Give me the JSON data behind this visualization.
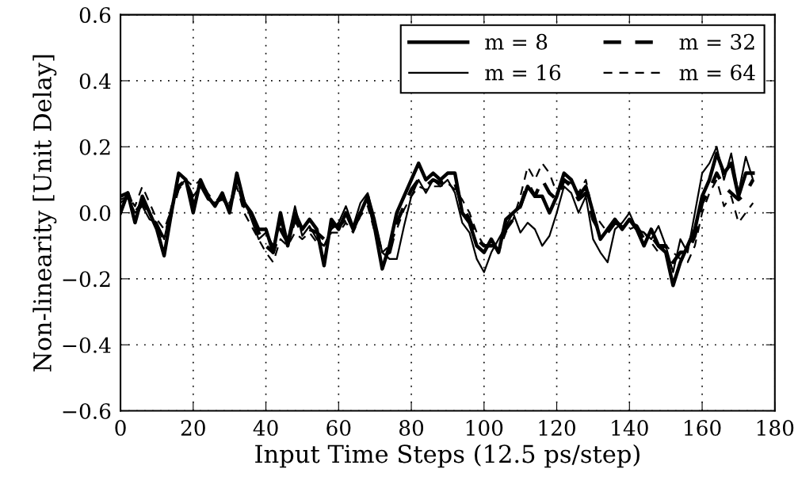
{
  "chart_data": {
    "type": "line",
    "xlabel": "Input Time Steps (12.5 ps/step)",
    "ylabel": "Non-linearity [Unit Delay]",
    "x": [
      0,
      2,
      4,
      6,
      8,
      10,
      12,
      14,
      16,
      18,
      20,
      22,
      24,
      26,
      28,
      30,
      32,
      34,
      36,
      38,
      40,
      42,
      44,
      46,
      48,
      50,
      52,
      54,
      56,
      58,
      60,
      62,
      64,
      66,
      68,
      70,
      72,
      74,
      76,
      78,
      80,
      82,
      84,
      86,
      88,
      90,
      92,
      94,
      96,
      98,
      100,
      102,
      104,
      106,
      108,
      110,
      112,
      114,
      116,
      118,
      120,
      122,
      124,
      126,
      128,
      130,
      132,
      134,
      136,
      138,
      140,
      142,
      144,
      146,
      148,
      150,
      152,
      154,
      156,
      158,
      160,
      162,
      164,
      166,
      168,
      170,
      172,
      174
    ],
    "series": [
      {
        "name": "m = 8",
        "color": "#000000",
        "line_style": "solid",
        "values": [
          0.0,
          0.06,
          -0.03,
          0.05,
          0.0,
          -0.05,
          -0.13,
          0.0,
          0.12,
          0.1,
          0.0,
          0.1,
          0.05,
          0.02,
          0.06,
          0.0,
          0.12,
          0.03,
          0.0,
          -0.05,
          -0.05,
          -0.12,
          0.0,
          -0.1,
          0.0,
          -0.05,
          -0.02,
          -0.05,
          -0.16,
          -0.02,
          -0.05,
          0.0,
          -0.05,
          0.0,
          0.05,
          -0.05,
          -0.17,
          -0.1,
          0.0,
          0.05,
          0.1,
          0.15,
          0.1,
          0.12,
          0.1,
          0.12,
          0.12,
          0.0,
          -0.03,
          -0.1,
          -0.12,
          -0.08,
          -0.12,
          -0.02,
          0.0,
          0.02,
          0.08,
          0.05,
          0.05,
          0.0,
          0.05,
          0.12,
          0.1,
          0.05,
          0.08,
          0.0,
          -0.08,
          -0.05,
          -0.02,
          -0.05,
          -0.02,
          -0.05,
          -0.1,
          -0.05,
          -0.1,
          -0.12,
          -0.22,
          -0.15,
          -0.1,
          -0.05,
          0.05,
          0.1,
          0.18,
          0.12,
          0.15,
          0.05,
          0.12,
          0.12
        ]
      },
      {
        "name": "m = 16",
        "color": "#000000",
        "line_style": "solid",
        "values": [
          0.03,
          0.05,
          0.0,
          0.02,
          -0.02,
          -0.03,
          -0.08,
          0.02,
          0.08,
          0.1,
          0.05,
          0.08,
          0.04,
          0.03,
          0.04,
          0.02,
          0.1,
          0.04,
          -0.02,
          -0.08,
          -0.06,
          -0.1,
          -0.03,
          -0.08,
          0.02,
          -0.07,
          -0.04,
          -0.08,
          -0.1,
          -0.05,
          -0.03,
          0.02,
          -0.04,
          0.03,
          0.06,
          -0.02,
          -0.12,
          -0.14,
          -0.14,
          -0.04,
          0.05,
          0.1,
          0.06,
          0.1,
          0.08,
          0.1,
          0.06,
          -0.03,
          -0.06,
          -0.14,
          -0.18,
          -0.12,
          -0.08,
          -0.04,
          0.0,
          -0.06,
          -0.03,
          -0.05,
          -0.1,
          -0.07,
          0.0,
          0.08,
          0.06,
          0.0,
          0.05,
          -0.08,
          -0.12,
          -0.15,
          -0.05,
          -0.03,
          0.0,
          -0.05,
          -0.06,
          -0.08,
          -0.04,
          -0.1,
          -0.18,
          -0.08,
          -0.12,
          0.0,
          0.12,
          0.15,
          0.2,
          0.1,
          0.18,
          0.06,
          0.17,
          0.1
        ]
      },
      {
        "name": "m = 32",
        "color": "#000000",
        "line_style": "dashed",
        "values": [
          0.05,
          0.06,
          0.0,
          0.03,
          0.0,
          -0.04,
          -0.08,
          0.0,
          0.08,
          0.1,
          0.03,
          0.09,
          0.05,
          0.03,
          0.05,
          0.01,
          0.1,
          0.02,
          0.0,
          -0.06,
          -0.1,
          -0.12,
          -0.05,
          -0.09,
          -0.02,
          -0.06,
          -0.05,
          -0.06,
          -0.08,
          -0.04,
          -0.04,
          -0.02,
          -0.05,
          0.0,
          0.04,
          -0.04,
          -0.13,
          -0.12,
          -0.03,
          0.02,
          0.07,
          0.1,
          0.08,
          0.1,
          0.09,
          0.1,
          0.09,
          0.02,
          -0.02,
          -0.08,
          -0.1,
          -0.1,
          -0.1,
          -0.05,
          -0.02,
          0.02,
          0.09,
          0.05,
          0.1,
          0.06,
          0.04,
          0.1,
          0.08,
          0.04,
          0.06,
          -0.02,
          -0.06,
          -0.06,
          -0.03,
          -0.04,
          -0.03,
          -0.04,
          -0.08,
          -0.07,
          -0.1,
          -0.1,
          -0.15,
          -0.12,
          -0.12,
          -0.07,
          0.03,
          0.07,
          0.12,
          0.08,
          0.06,
          0.04,
          0.06,
          0.1
        ]
      },
      {
        "name": "m = 64",
        "color": "#000000",
        "line_style": "dashed",
        "values": [
          0.04,
          0.05,
          0.02,
          0.08,
          0.03,
          -0.02,
          -0.05,
          0.01,
          0.07,
          0.1,
          0.08,
          0.1,
          0.06,
          0.03,
          0.04,
          0.03,
          0.08,
          0.0,
          -0.04,
          -0.08,
          -0.12,
          -0.15,
          -0.08,
          -0.1,
          -0.06,
          -0.08,
          -0.06,
          -0.09,
          -0.1,
          -0.06,
          -0.06,
          -0.03,
          -0.06,
          -0.01,
          0.02,
          -0.06,
          -0.12,
          -0.1,
          -0.05,
          0.01,
          0.05,
          0.08,
          0.07,
          0.08,
          0.08,
          0.09,
          0.07,
          0.04,
          0.0,
          -0.06,
          -0.1,
          -0.08,
          -0.12,
          -0.06,
          -0.02,
          0.05,
          0.14,
          0.1,
          0.15,
          0.12,
          0.06,
          0.1,
          0.09,
          0.06,
          0.1,
          0.0,
          -0.03,
          -0.06,
          -0.02,
          -0.04,
          -0.05,
          -0.04,
          -0.06,
          -0.09,
          -0.12,
          -0.1,
          -0.12,
          -0.14,
          -0.15,
          -0.1,
          0.0,
          0.06,
          0.1,
          0.02,
          0.05,
          -0.03,
          0.0,
          0.03
        ]
      }
    ],
    "xlim": [
      0,
      180
    ],
    "xticks": [
      0,
      20,
      40,
      60,
      80,
      100,
      120,
      140,
      160,
      180
    ],
    "ylim": [
      -0.6,
      0.6
    ],
    "yticks": [
      {
        "value": -0.6,
        "label": "−0.6"
      },
      {
        "value": -0.4,
        "label": "−0.4"
      },
      {
        "value": -0.2,
        "label": "−0.2"
      },
      {
        "value": 0,
        "label": "0.0"
      },
      {
        "value": 0.2,
        "label": "0.2"
      },
      {
        "value": 0.4,
        "label": "0.4"
      },
      {
        "value": 0.6,
        "label": "0.6"
      }
    ],
    "grid": true,
    "legend": "top right",
    "marker": "none"
  }
}
